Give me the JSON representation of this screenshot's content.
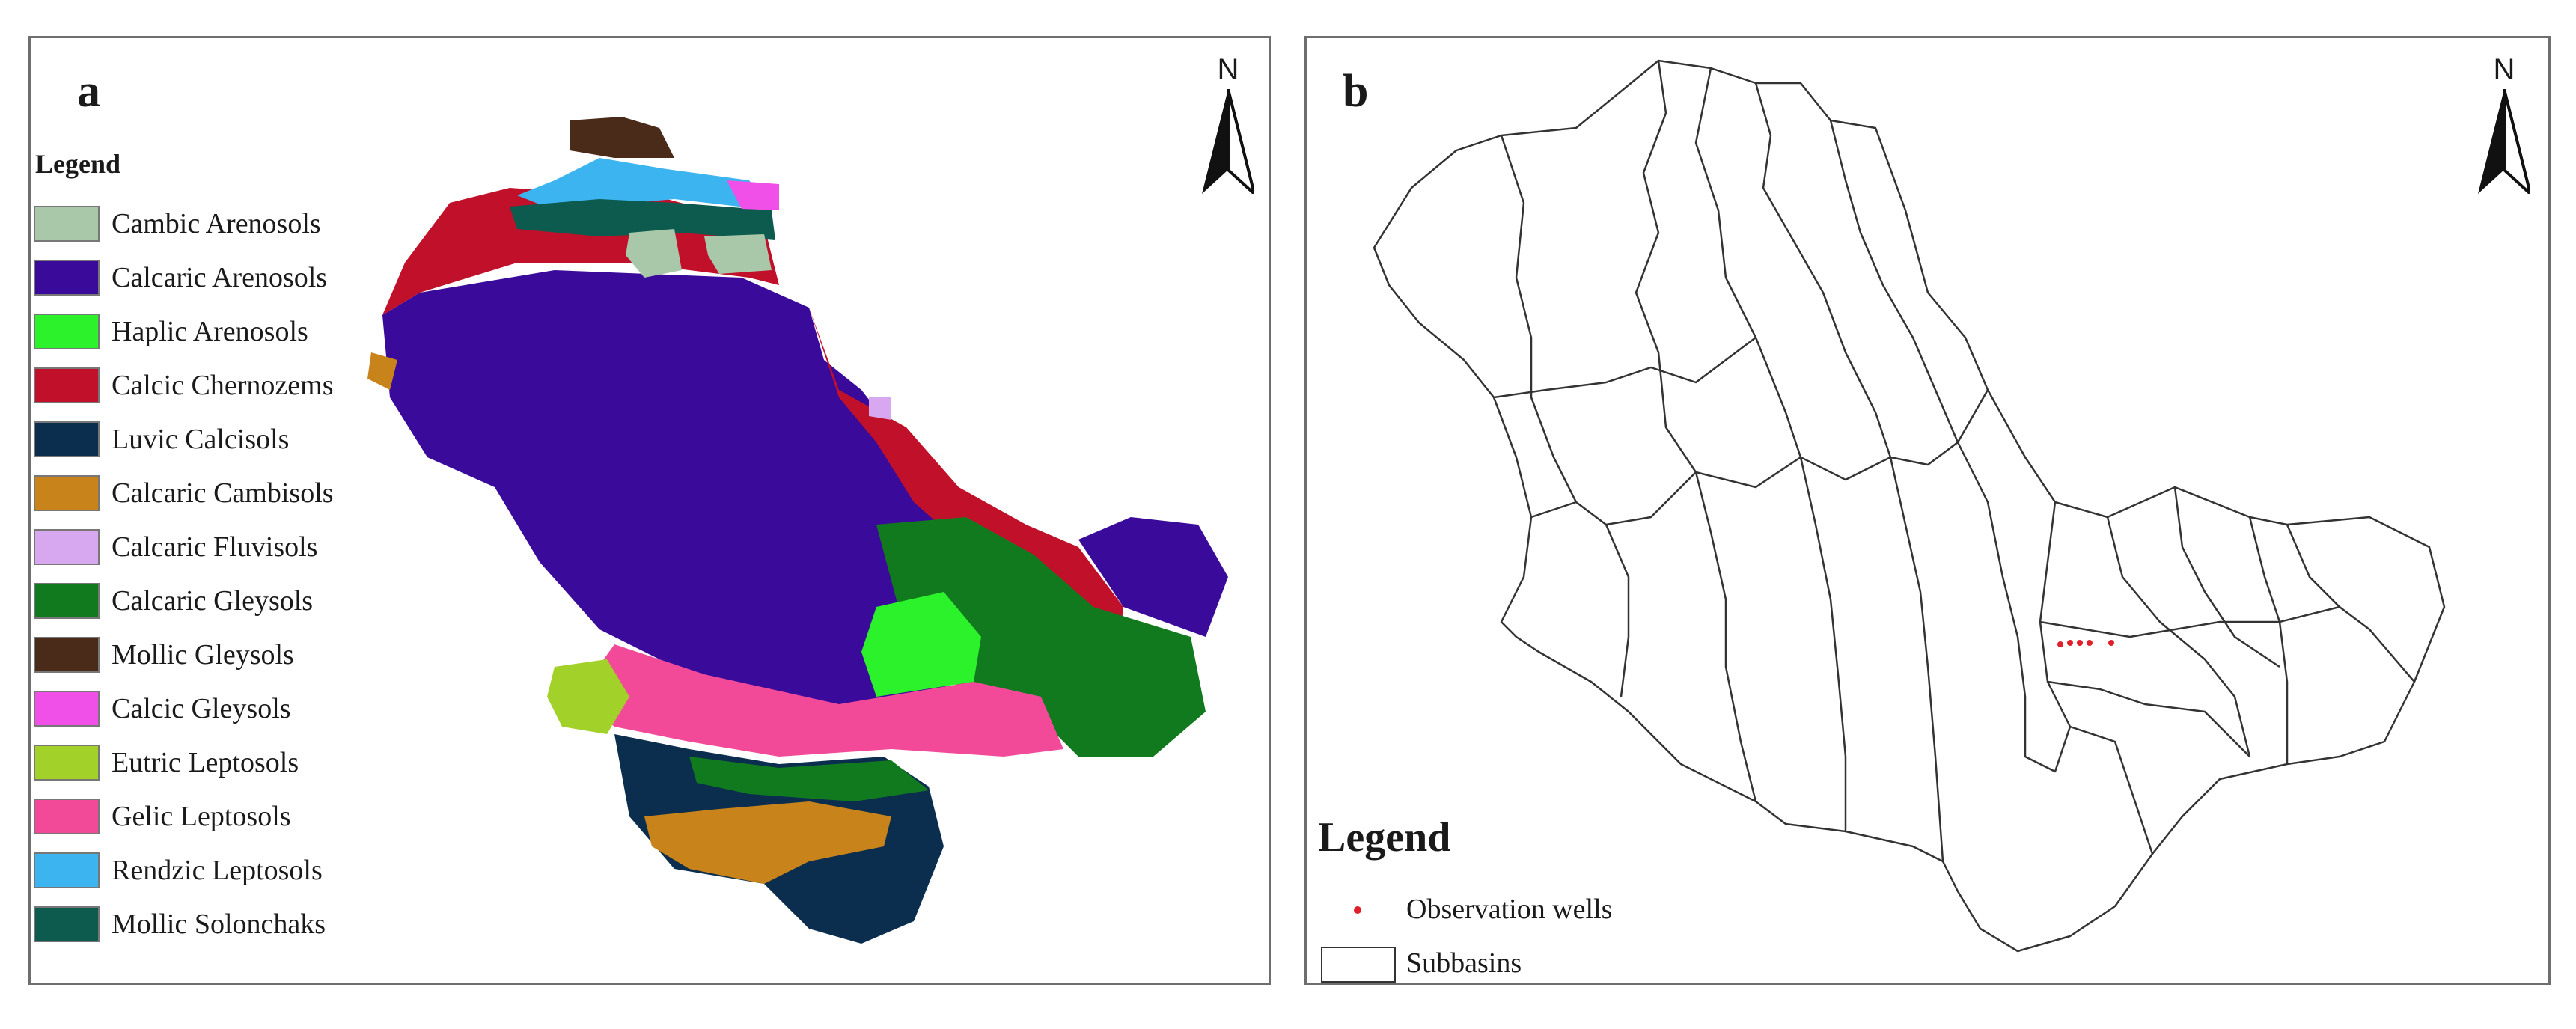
{
  "panels": {
    "a": {
      "letter": "a",
      "north_label": "N",
      "legend_title": "Legend",
      "legend_items": [
        {
          "label": "Cambic Arenosols",
          "color": "#a9c8a9"
        },
        {
          "label": "Calcaric Arenosols",
          "color": "#3a0a9a"
        },
        {
          "label": "Haplic Arenosols",
          "color": "#2cf22c"
        },
        {
          "label": "Calcic Chernozems",
          "color": "#c0102a"
        },
        {
          "label": "Luvic Calcisols",
          "color": "#0b2e4f"
        },
        {
          "label": "Calcaric Cambisols",
          "color": "#c8841a"
        },
        {
          "label": "Calcaric Fluvisols",
          "color": "#d7a8f0"
        },
        {
          "label": "Calcaric Gleysols",
          "color": "#127a1e"
        },
        {
          "label": "Mollic Gleysols",
          "color": "#4a2a18"
        },
        {
          "label": "Calcic Gleysols",
          "color": "#f050e8"
        },
        {
          "label": "Eutric Leptosols",
          "color": "#a2d12a"
        },
        {
          "label": "Gelic Leptosols",
          "color": "#f24a98"
        },
        {
          "label": "Rendzic Leptosols",
          "color": "#3cb4f0"
        },
        {
          "label": "Mollic Solonchaks",
          "color": "#0d5a4e"
        }
      ]
    },
    "b": {
      "letter": "b",
      "north_label": "N",
      "legend_title": "Legend",
      "legend_items": [
        {
          "label": "Observation wells",
          "color": "#e0202a",
          "symbol": "point"
        },
        {
          "label": "Subbasins",
          "color": "#333333",
          "symbol": "polygon"
        }
      ]
    }
  }
}
